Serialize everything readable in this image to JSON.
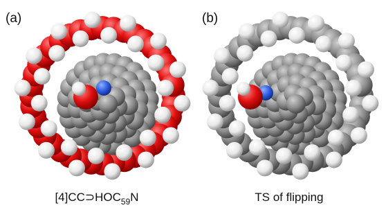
{
  "panels": [
    {
      "label": "(a)",
      "caption": {
        "before": "[4]CC⊃HOC",
        "subscript": "59",
        "after": "N"
      }
    },
    {
      "label": "(b)",
      "caption": {
        "text": "TS of flipping"
      }
    }
  ]
}
